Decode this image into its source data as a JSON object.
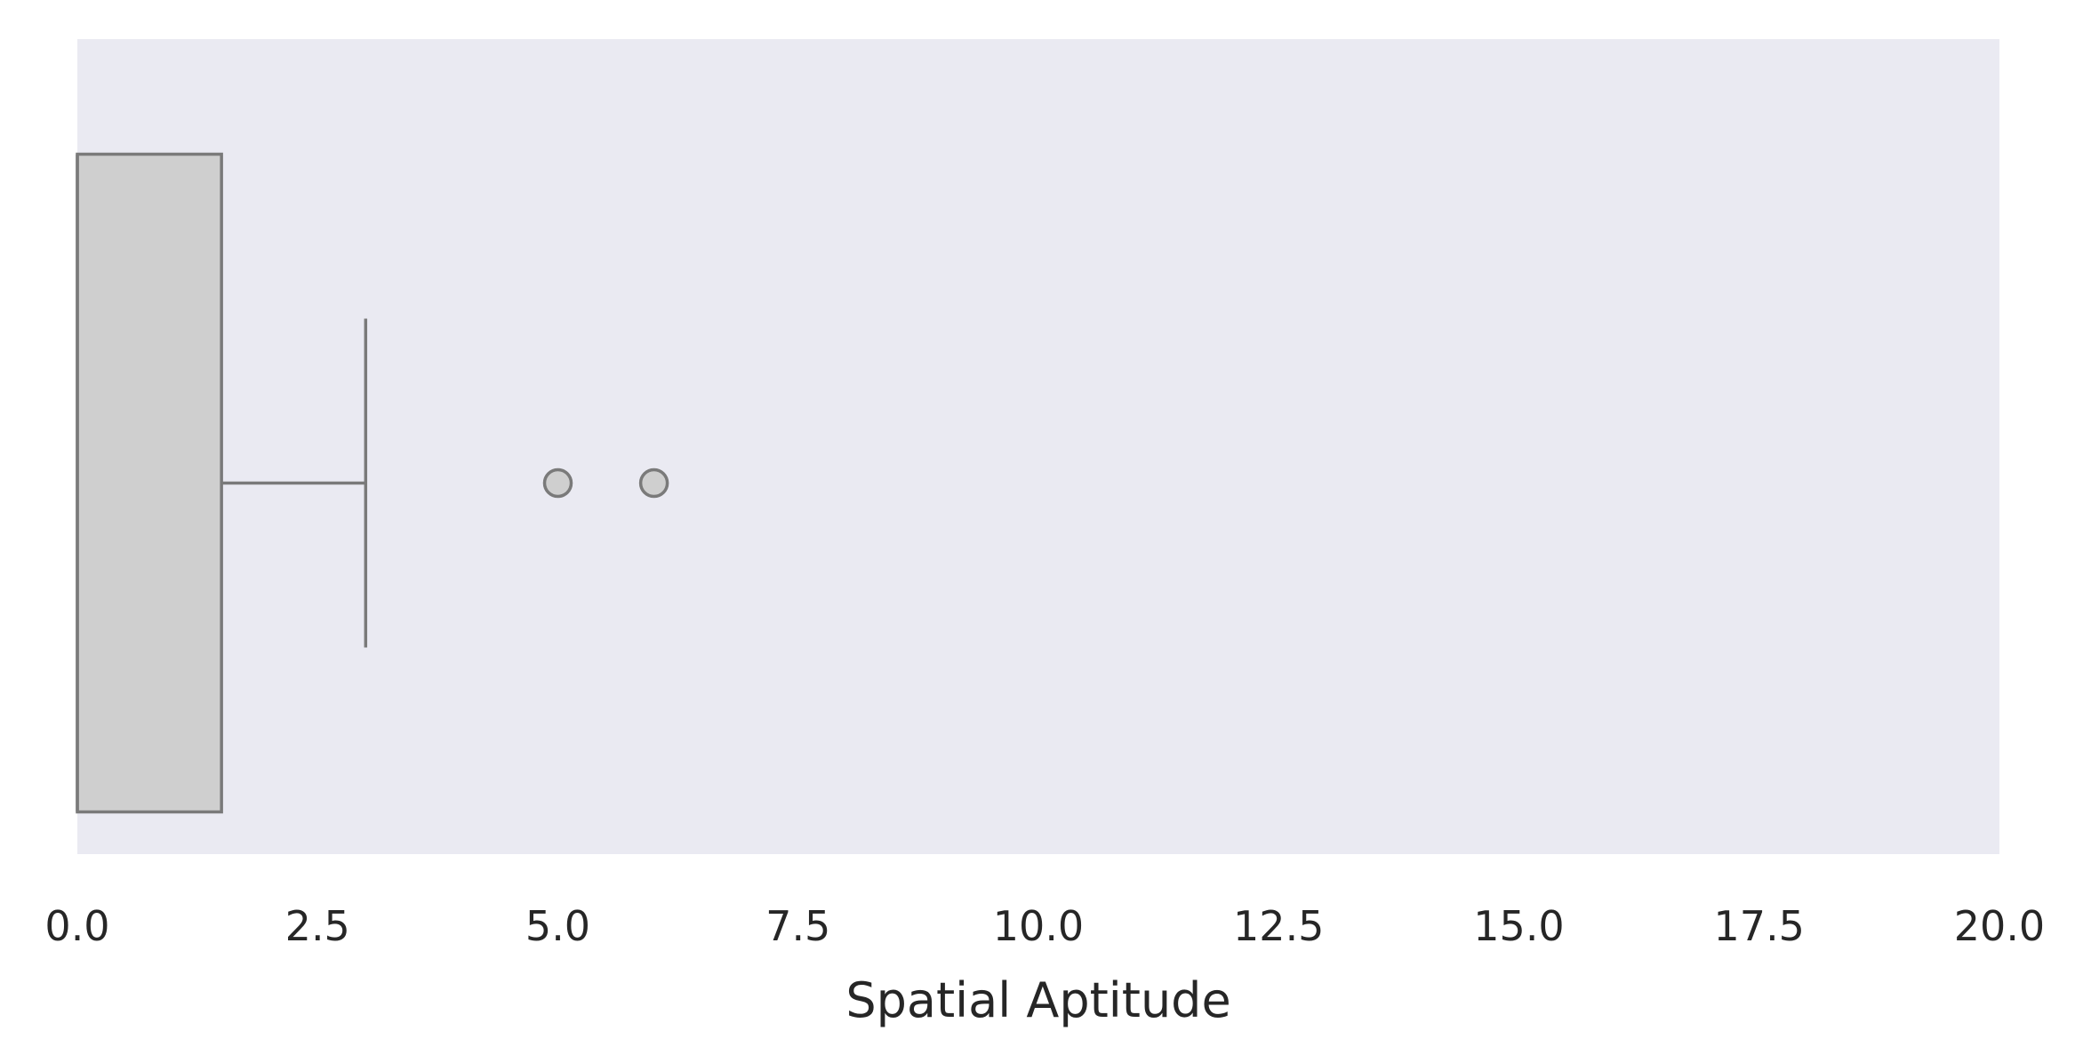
{
  "chart_data": {
    "type": "boxplot",
    "orientation": "horizontal",
    "title": "",
    "xlabel": "Spatial Aptitude",
    "ylabel": "",
    "xlim": [
      0,
      20
    ],
    "xticks": [
      0,
      2.5,
      5,
      7.5,
      10,
      12.5,
      15,
      17.5,
      20
    ],
    "xtick_labels": [
      "0.0",
      "2.5",
      "5.0",
      "7.5",
      "10.0",
      "12.5",
      "15.0",
      "17.5",
      "20.0"
    ],
    "grid": false,
    "box": {
      "min": 0,
      "q1": 0,
      "median": 0,
      "q3": 1.5,
      "whisker_low": 0,
      "whisker_high": 3,
      "outliers": [
        5,
        6
      ]
    },
    "colors": {
      "plot_background": "#eaeaf2",
      "box_fill": "#cfcfcf",
      "line": "#7a7a7a",
      "text": "#262626"
    }
  }
}
